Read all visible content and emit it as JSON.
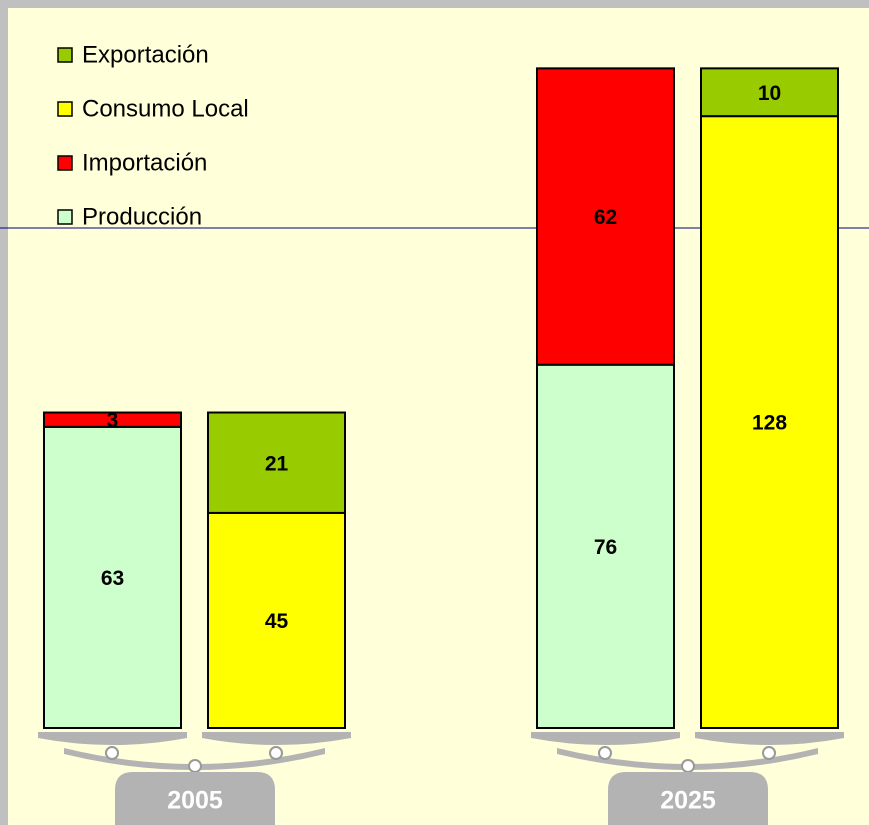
{
  "chart_data": {
    "type": "bar",
    "stacked": true,
    "categories": [
      "2005",
      "2025"
    ],
    "stacks": [
      {
        "series": [
          {
            "name": "Producción",
            "color": "#ccffcc",
            "values": [
              63,
              76
            ]
          },
          {
            "name": "Importación",
            "color": "#ff0000",
            "values": [
              3,
              62
            ]
          }
        ]
      },
      {
        "series": [
          {
            "name": "Consumo Local",
            "color": "#ffff00",
            "values": [
              45,
              128
            ]
          },
          {
            "name": "Exportación",
            "color": "#99cc00",
            "values": [
              21,
              10
            ]
          }
        ]
      }
    ],
    "legend": "top-left"
  }
}
